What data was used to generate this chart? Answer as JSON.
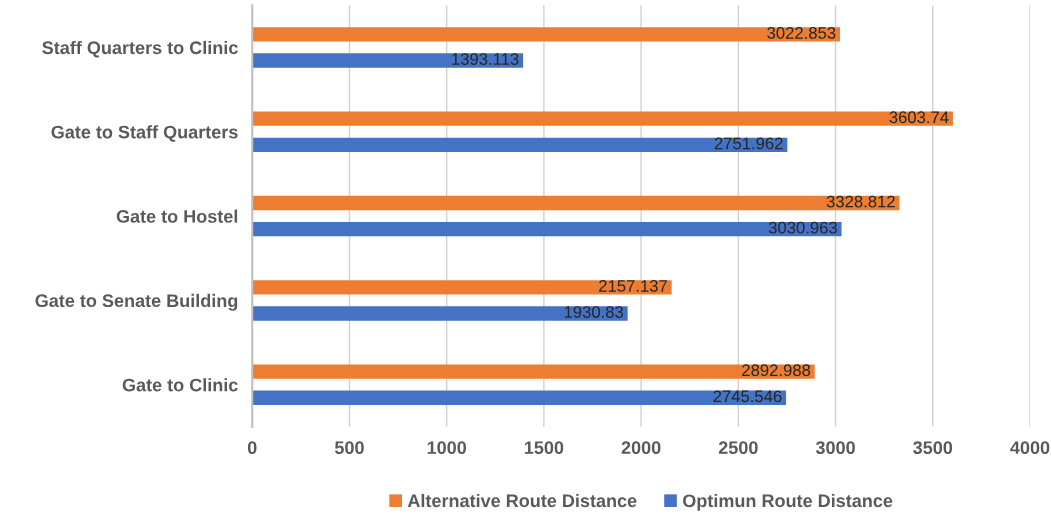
{
  "chart_data": {
    "type": "bar",
    "orientation": "horizontal",
    "categories": [
      "Staff Quarters to Clinic",
      "Gate to Staff Quarters",
      "Gate to Hostel",
      "Gate to Senate Building",
      "Gate to Clinic"
    ],
    "series": [
      {
        "name": "Alternative Route Distance",
        "color": "#ed7d31",
        "values": [
          3022.853,
          3603.74,
          3328.812,
          2157.137,
          2892.988
        ]
      },
      {
        "name": "Optimun Route Distance",
        "color": "#4472c4",
        "values": [
          1393.113,
          2751.962,
          3030.963,
          1930.83,
          2745.546
        ]
      }
    ],
    "xlim": [
      0,
      4000
    ],
    "xticks": [
      0,
      500,
      1000,
      1500,
      2000,
      2500,
      3000,
      3500,
      4000
    ],
    "grid": "x",
    "legend": "bottom",
    "data_labels": true
  }
}
